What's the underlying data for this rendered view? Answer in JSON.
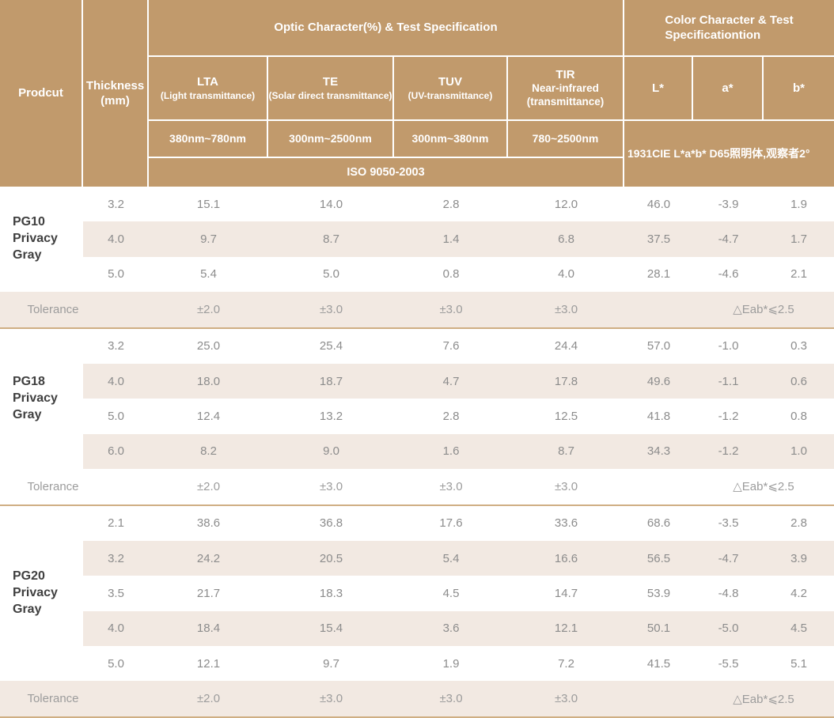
{
  "colors": {
    "header_bg": "#c19a6c",
    "header_text": "#ffffff",
    "stripe_bg": "#f2e9e2",
    "separator_line": "#cfae83",
    "value_text": "#8c8c8c",
    "product_text": "#3f3f3f",
    "tolerance_text": "#9c9c9c"
  },
  "header": {
    "product_label": "Prodcut",
    "thickness_label": "Thickness\n(mm)",
    "optic_group_label": "Optic Character(%) & Test Specification",
    "color_group_label": "Color Character & Test\nSpecificationtion",
    "optic_columns": [
      {
        "abbr": "LTA",
        "desc": "(Light transmittance)",
        "range": "380nm~780nm"
      },
      {
        "abbr": "TE",
        "desc": "(Solar direct transmittance)",
        "range": "300nm~2500nm"
      },
      {
        "abbr": "TUV",
        "desc": "(UV-transmittance)",
        "range": "300nm~380nm"
      },
      {
        "abbr": "TIR",
        "desc": "Near-infrared\n(transmittance)",
        "range": "780~2500nm"
      }
    ],
    "color_columns": [
      "L*",
      "a*",
      "b*"
    ],
    "iso_label": "ISO 9050-2003",
    "cie_label": "1931CIE L*a*b*  D65照明体,观察者2°"
  },
  "groups": [
    {
      "name": "PG10\nPrivacy Gray",
      "rows": [
        {
          "thickness": "3.2",
          "values": [
            "15.1",
            "14.0",
            "2.8",
            "12.0",
            "46.0",
            "-3.9",
            "1.9"
          ]
        },
        {
          "thickness": "4.0",
          "values": [
            "9.7",
            "8.7",
            "1.4",
            "6.8",
            "37.5",
            "-4.7",
            "1.7"
          ]
        },
        {
          "thickness": "5.0",
          "values": [
            "5.4",
            "5.0",
            "0.8",
            "4.0",
            "28.1",
            "-4.6",
            "2.1"
          ]
        }
      ],
      "tolerance": {
        "label": "Tolerance",
        "values": [
          "±2.0",
          "±3.0",
          "±3.0",
          "±3.0"
        ],
        "color_value": "△Eab*⩽2.5"
      },
      "tolerance_shaded": true
    },
    {
      "name": "PG18\nPrivacy Gray",
      "rows": [
        {
          "thickness": "3.2",
          "values": [
            "25.0",
            "25.4",
            "7.6",
            "24.4",
            "57.0",
            "-1.0",
            "0.3"
          ]
        },
        {
          "thickness": "4.0",
          "values": [
            "18.0",
            "18.7",
            "4.7",
            "17.8",
            "49.6",
            "-1.1",
            "0.6"
          ]
        },
        {
          "thickness": "5.0",
          "values": [
            "12.4",
            "13.2",
            "2.8",
            "12.5",
            "41.8",
            "-1.2",
            "0.8"
          ]
        },
        {
          "thickness": "6.0",
          "values": [
            "8.2",
            "9.0",
            "1.6",
            "8.7",
            "34.3",
            "-1.2",
            "1.0"
          ]
        }
      ],
      "tolerance": {
        "label": "Tolerance",
        "values": [
          "±2.0",
          "±3.0",
          "±3.0",
          "±3.0"
        ],
        "color_value": "△Eab*⩽2.5"
      },
      "tolerance_shaded": false
    },
    {
      "name": "PG20\nPrivacy Gray",
      "rows": [
        {
          "thickness": "2.1",
          "values": [
            "38.6",
            "36.8",
            "17.6",
            "33.6",
            "68.6",
            "-3.5",
            "2.8"
          ]
        },
        {
          "thickness": "3.2",
          "values": [
            "24.2",
            "20.5",
            "5.4",
            "16.6",
            "56.5",
            "-4.7",
            "3.9"
          ]
        },
        {
          "thickness": "3.5",
          "values": [
            "21.7",
            "18.3",
            "4.5",
            "14.7",
            "53.9",
            "-4.8",
            "4.2"
          ]
        },
        {
          "thickness": "4.0",
          "values": [
            "18.4",
            "15.4",
            "3.6",
            "12.1",
            "50.1",
            "-5.0",
            "4.5"
          ]
        },
        {
          "thickness": "5.0",
          "values": [
            "12.1",
            "9.7",
            "1.9",
            "7.2",
            "41.5",
            "-5.5",
            "5.1"
          ]
        }
      ],
      "tolerance": {
        "label": "Tolerance",
        "values": [
          "±2.0",
          "±3.0",
          "±3.0",
          "±3.0"
        ],
        "color_value": "△Eab*⩽2.5"
      },
      "tolerance_shaded": true
    }
  ]
}
